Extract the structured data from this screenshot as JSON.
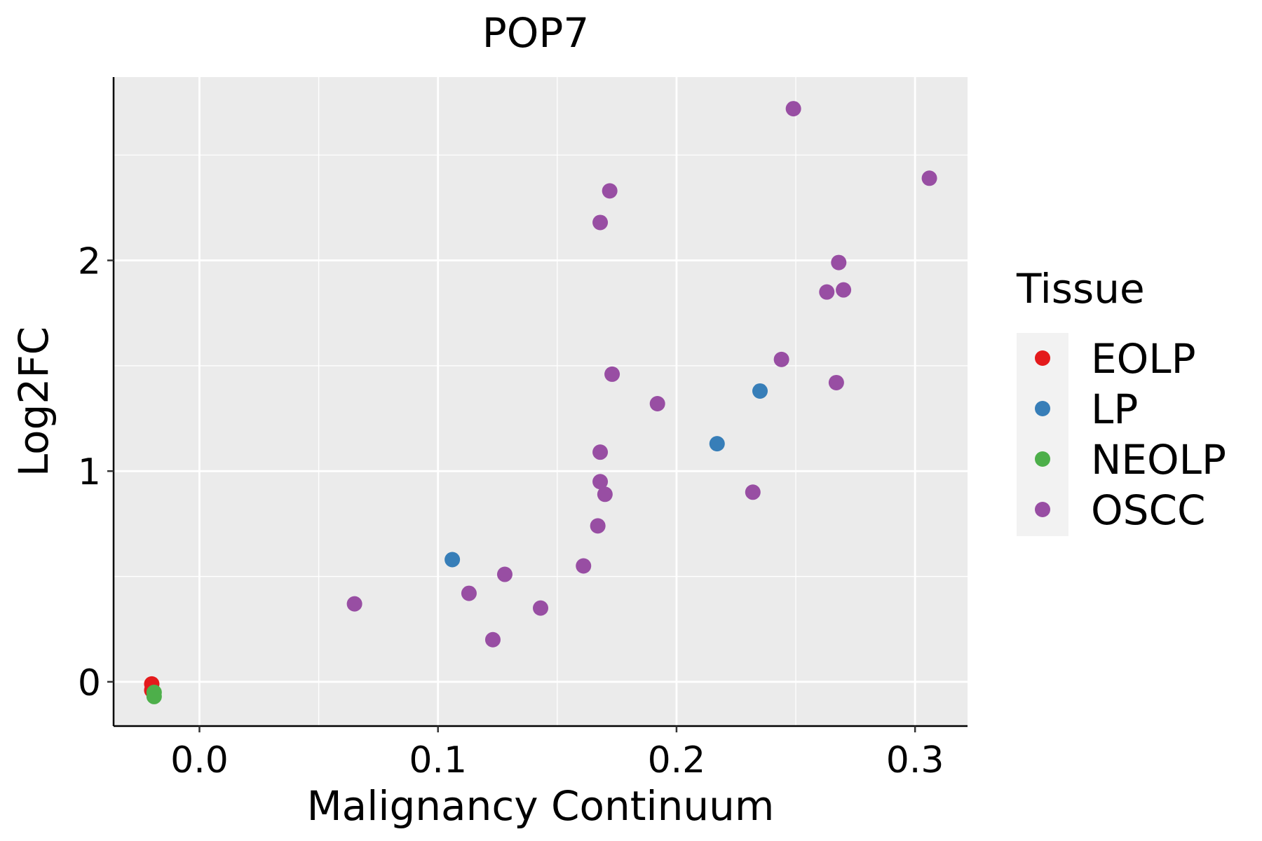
{
  "chart_data": {
    "type": "scatter",
    "title": "POP7",
    "xlabel": "Malignancy Continuum",
    "ylabel": "Log2FC",
    "xlim": [
      -0.036,
      0.322
    ],
    "ylim": [
      -0.21,
      2.87
    ],
    "x_ticks": [
      0.0,
      0.1,
      0.2,
      0.3
    ],
    "x_tick_labels": [
      "0.0",
      "0.1",
      "0.2",
      "0.3"
    ],
    "y_ticks": [
      0,
      1,
      2
    ],
    "y_tick_labels": [
      "0",
      "1",
      "2"
    ],
    "grid": true,
    "legend": {
      "title": "Tissue",
      "position": "right"
    },
    "series": [
      {
        "name": "EOLP",
        "color": "#E41A1C",
        "points": [
          {
            "x": -0.02,
            "y": -0.01
          },
          {
            "x": -0.02,
            "y": -0.04
          }
        ]
      },
      {
        "name": "LP",
        "color": "#377EB8",
        "points": [
          {
            "x": 0.106,
            "y": 0.58
          },
          {
            "x": 0.217,
            "y": 1.13
          },
          {
            "x": 0.235,
            "y": 1.38
          }
        ]
      },
      {
        "name": "NEOLP",
        "color": "#4DAF4A",
        "points": [
          {
            "x": -0.019,
            "y": -0.05
          },
          {
            "x": -0.019,
            "y": -0.07
          }
        ]
      },
      {
        "name": "OSCC",
        "color": "#984EA3",
        "points": [
          {
            "x": 0.065,
            "y": 0.37
          },
          {
            "x": 0.113,
            "y": 0.42
          },
          {
            "x": 0.123,
            "y": 0.2
          },
          {
            "x": 0.128,
            "y": 0.51
          },
          {
            "x": 0.143,
            "y": 0.35
          },
          {
            "x": 0.161,
            "y": 0.55
          },
          {
            "x": 0.167,
            "y": 0.74
          },
          {
            "x": 0.168,
            "y": 0.95
          },
          {
            "x": 0.17,
            "y": 0.89
          },
          {
            "x": 0.168,
            "y": 1.09
          },
          {
            "x": 0.173,
            "y": 1.46
          },
          {
            "x": 0.192,
            "y": 1.32
          },
          {
            "x": 0.168,
            "y": 2.18
          },
          {
            "x": 0.172,
            "y": 2.33
          },
          {
            "x": 0.232,
            "y": 0.9
          },
          {
            "x": 0.244,
            "y": 1.53
          },
          {
            "x": 0.249,
            "y": 2.72
          },
          {
            "x": 0.263,
            "y": 1.85
          },
          {
            "x": 0.267,
            "y": 1.42
          },
          {
            "x": 0.268,
            "y": 1.99
          },
          {
            "x": 0.27,
            "y": 1.86
          },
          {
            "x": 0.306,
            "y": 2.39
          }
        ]
      }
    ]
  }
}
